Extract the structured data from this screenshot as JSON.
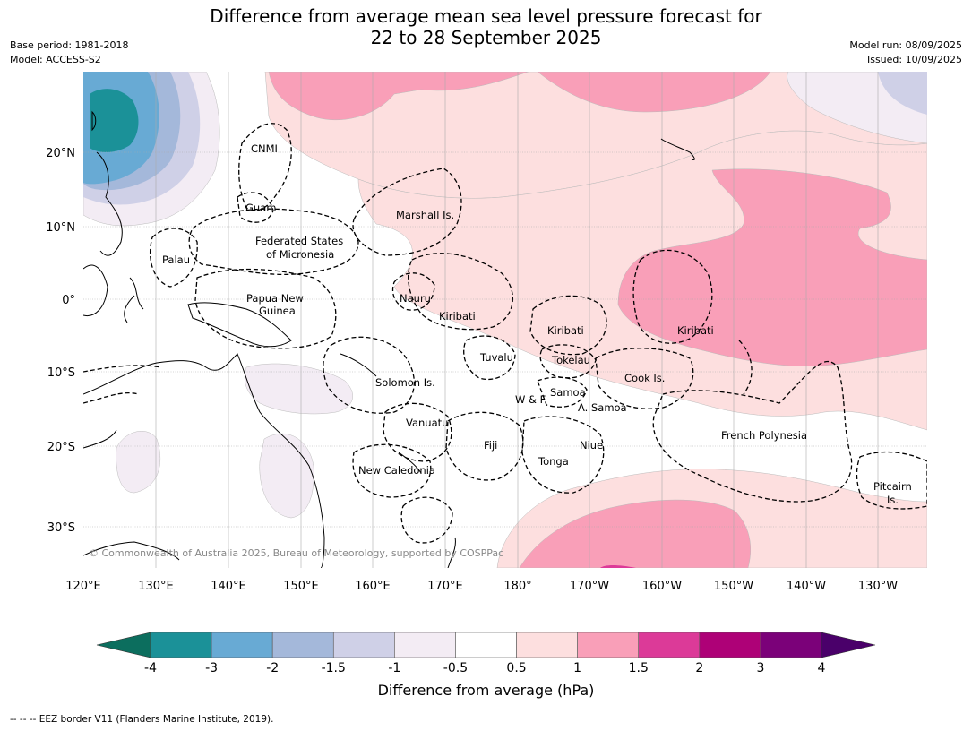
{
  "header": {
    "title_line1": "Difference from average mean sea level pressure forecast for",
    "title_line2": "22 to 28 September 2025",
    "base_period": "Base period: 1981-2018",
    "model": "Model: ACCESS-S2",
    "model_run": "Model run: 08/09/2025",
    "issued": "Issued: 10/09/2025"
  },
  "map": {
    "lon_ticks": [
      "120°E",
      "130°E",
      "140°E",
      "150°E",
      "160°E",
      "170°E",
      "180°",
      "170°W",
      "160°W",
      "150°W",
      "140°W",
      "130°W"
    ],
    "lat_ticks": [
      "20°N",
      "10°N",
      "0°",
      "10°S",
      "20°S",
      "30°S"
    ],
    "copyright": "© Commonwealth of Australia 2025, Bureau of Meteorology, supported by COSPPac",
    "places": [
      {
        "name": "cnmi",
        "text": "CNMI"
      },
      {
        "name": "guam",
        "text": "Guam"
      },
      {
        "name": "marshall",
        "text": "Marshall Is."
      },
      {
        "name": "fsm1",
        "text": "Federated States"
      },
      {
        "name": "fsm2",
        "text": "of Micronesia"
      },
      {
        "name": "palau",
        "text": "Palau"
      },
      {
        "name": "png1",
        "text": "Papua New"
      },
      {
        "name": "png2",
        "text": "Guinea"
      },
      {
        "name": "nauru",
        "text": "Nauru"
      },
      {
        "name": "kiribati-w",
        "text": "Kiribati"
      },
      {
        "name": "kiribati-c",
        "text": "Kiribati"
      },
      {
        "name": "kiribati-e",
        "text": "Kiribati"
      },
      {
        "name": "tuvalu",
        "text": "Tuvalu"
      },
      {
        "name": "tokelau",
        "text": "Tokelau"
      },
      {
        "name": "cook",
        "text": "Cook Is."
      },
      {
        "name": "solomon",
        "text": "Solomon Is."
      },
      {
        "name": "samoa",
        "text": "Samoa"
      },
      {
        "name": "wf",
        "text": "W & F"
      },
      {
        "name": "asamoa",
        "text": "A. Samoa"
      },
      {
        "name": "vanuatu",
        "text": "Vanuatu"
      },
      {
        "name": "fiji",
        "text": "Fiji"
      },
      {
        "name": "niue",
        "text": "Niue"
      },
      {
        "name": "frenchpoly",
        "text": "French Polynesia"
      },
      {
        "name": "tonga",
        "text": "Tonga"
      },
      {
        "name": "newcal",
        "text": "New Caledonia"
      },
      {
        "name": "pitcairn1",
        "text": "Pitcairn"
      },
      {
        "name": "pitcairn2",
        "text": "Is."
      }
    ]
  },
  "colorbar": {
    "label": "Difference from average (hPa)",
    "ticks": [
      "-4",
      "-3",
      "-2",
      "-1.5",
      "-1",
      "-0.5",
      "0.5",
      "1",
      "1.5",
      "2",
      "3",
      "4"
    ],
    "colors": [
      "#1b9198",
      "#68aad4",
      "#a4b8da",
      "#cfd0e7",
      "#f3ecf4",
      "#ffffff",
      "#fddfdf",
      "#f99fb8",
      "#dc3a98",
      "#ae0177",
      "#7b0179"
    ],
    "under_color": "#0c6e5e",
    "over_color": "#4a006a"
  },
  "footer": {
    "eez_note": "-- -- -- EEZ border V11 (Flanders Marine Institute, 2019)."
  }
}
